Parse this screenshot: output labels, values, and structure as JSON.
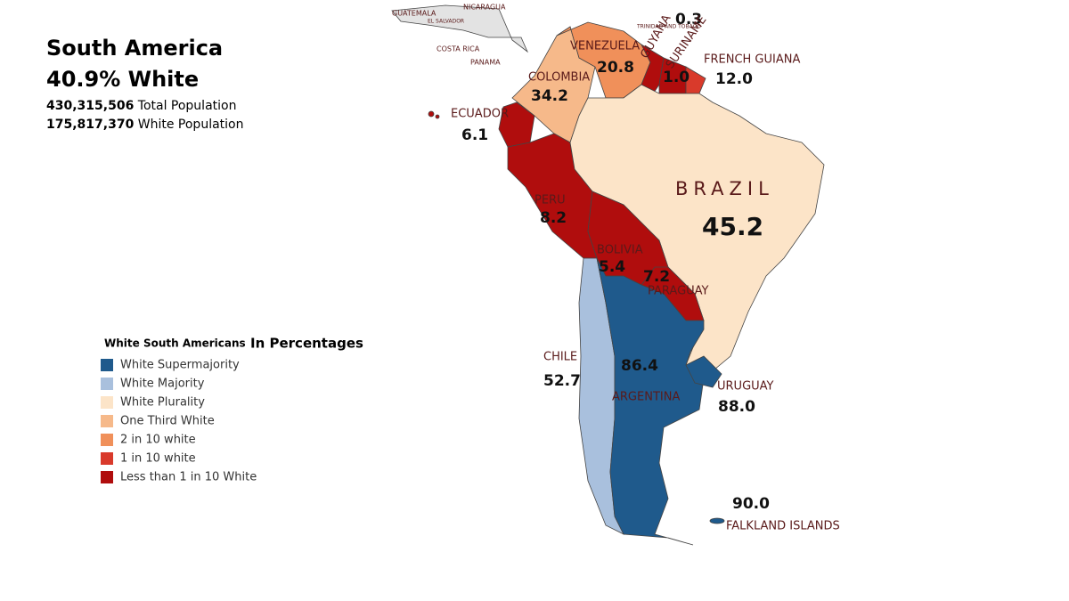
{
  "header": {
    "title": "South America",
    "subtitle": "40.9% White",
    "stats": [
      {
        "value": "430,315,506",
        "label": "Total Population"
      },
      {
        "value": "175,817,370",
        "label": "White Population"
      }
    ]
  },
  "legend": {
    "title": "White South Americans",
    "subtitle": "In Percentages",
    "items": [
      {
        "label": "White Supermajority",
        "color": "#1f5a8c"
      },
      {
        "label": "White Majority",
        "color": "#a9c0dd"
      },
      {
        "label": "White Plurality",
        "color": "#fce4c8"
      },
      {
        "label": "One Third White",
        "color": "#f6b98a"
      },
      {
        "label": "2 in 10 white",
        "color": "#f0905a"
      },
      {
        "label": "1 in 10 white",
        "color": "#d93a2b"
      },
      {
        "label": "Less than 1 in 10 White",
        "color": "#b00d0d"
      }
    ]
  },
  "map": {
    "countries": [
      {
        "name": "VENEZUELA",
        "value": "20.8"
      },
      {
        "name": "COLOMBIA",
        "value": "34.2"
      },
      {
        "name": "GUYANA",
        "value": "0.3"
      },
      {
        "name": "SURINAME",
        "value": "1.0"
      },
      {
        "name": "FRENCH GUIANA",
        "value": "12.0"
      },
      {
        "name": "ECUADOR",
        "value": "6.1"
      },
      {
        "name": "PERU",
        "value": "8.2"
      },
      {
        "name": "BRAZIL",
        "value": "45.2"
      },
      {
        "name": "BOLIVIA",
        "value": "5.4"
      },
      {
        "name": "PARAGUAY",
        "value": "7.2"
      },
      {
        "name": "CHILE",
        "value": "52.7"
      },
      {
        "name": "ARGENTINA",
        "value": "86.4"
      },
      {
        "name": "URUGUAY",
        "value": "88.0"
      },
      {
        "name": "FALKLAND ISLANDS",
        "value": "90.0"
      }
    ],
    "other_labels": [
      "GUATEMALA",
      "EL SALVADOR",
      "NICARAGUA",
      "COSTA RICA",
      "PANAMA",
      "TRINIDAD AND TOBAGO"
    ]
  }
}
